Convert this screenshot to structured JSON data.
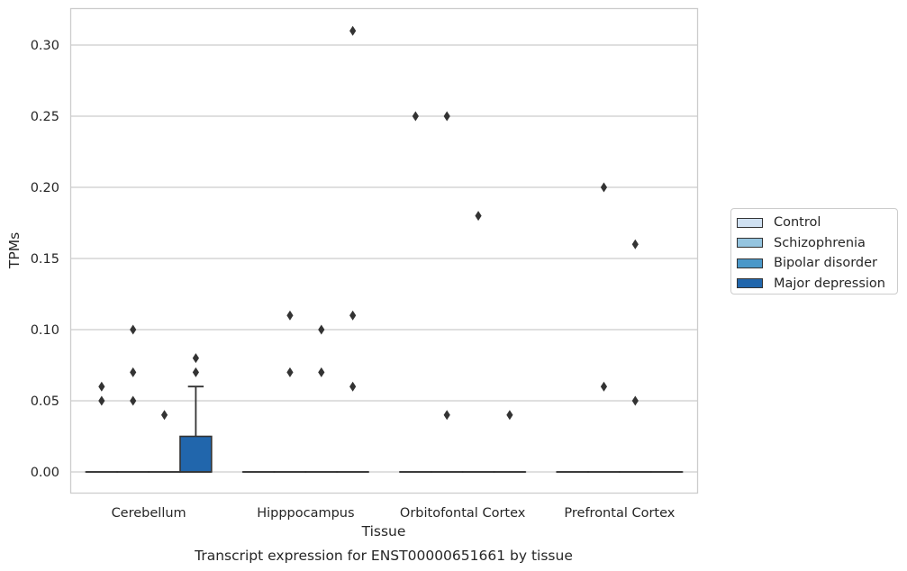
{
  "chart_data": {
    "type": "box",
    "title": "Transcript expression for ENST00000651661 by tissue",
    "xlabel": "Tissue",
    "ylabel": "TPMs",
    "categories": [
      "Cerebellum",
      "Hipppocampus",
      "Orbitofontal Cortex",
      "Prefrontal Cortex"
    ],
    "ylim": [
      -0.015,
      0.325
    ],
    "yticks": [
      "0.00",
      "0.05",
      "0.10",
      "0.15",
      "0.20",
      "0.25",
      "0.30"
    ],
    "grid": true,
    "legend_position": "right",
    "series": [
      {
        "name": "Control",
        "color": "#d0e1f2",
        "boxes": [
          {
            "q1": 0,
            "median": 0,
            "q3": 0,
            "whisker_low": 0,
            "whisker_high": 0,
            "outliers": [
              0.05,
              0.06
            ]
          },
          {
            "q1": 0,
            "median": 0,
            "q3": 0,
            "whisker_low": 0,
            "whisker_high": 0,
            "outliers": []
          },
          {
            "q1": 0,
            "median": 0,
            "q3": 0,
            "whisker_low": 0,
            "whisker_high": 0,
            "outliers": [
              0.25
            ]
          },
          {
            "q1": 0,
            "median": 0,
            "q3": 0,
            "whisker_low": 0,
            "whisker_high": 0,
            "outliers": []
          }
        ]
      },
      {
        "name": "Schizophrenia",
        "color": "#94c4df",
        "boxes": [
          {
            "q1": 0,
            "median": 0,
            "q3": 0,
            "whisker_low": 0,
            "whisker_high": 0,
            "outliers": [
              0.05,
              0.07,
              0.1
            ]
          },
          {
            "q1": 0,
            "median": 0,
            "q3": 0,
            "whisker_low": 0,
            "whisker_high": 0,
            "outliers": [
              0.07,
              0.11
            ]
          },
          {
            "q1": 0,
            "median": 0,
            "q3": 0,
            "whisker_low": 0,
            "whisker_high": 0,
            "outliers": [
              0.04,
              0.25
            ]
          },
          {
            "q1": 0,
            "median": 0,
            "q3": 0,
            "whisker_low": 0,
            "whisker_high": 0,
            "outliers": [
              0.06,
              0.2
            ]
          }
        ]
      },
      {
        "name": "Bipolar disorder",
        "color": "#4a98c9",
        "boxes": [
          {
            "q1": 0,
            "median": 0,
            "q3": 0,
            "whisker_low": 0,
            "whisker_high": 0,
            "outliers": [
              0.04
            ]
          },
          {
            "q1": 0,
            "median": 0,
            "q3": 0,
            "whisker_low": 0,
            "whisker_high": 0,
            "outliers": [
              0.07,
              0.1
            ]
          },
          {
            "q1": 0,
            "median": 0,
            "q3": 0,
            "whisker_low": 0,
            "whisker_high": 0,
            "outliers": [
              0.18
            ]
          },
          {
            "q1": 0,
            "median": 0,
            "q3": 0,
            "whisker_low": 0,
            "whisker_high": 0,
            "outliers": [
              0.05,
              0.16
            ]
          }
        ]
      },
      {
        "name": "Major depression",
        "color": "#2166ac",
        "boxes": [
          {
            "q1": 0,
            "median": 0,
            "q3": 0.025,
            "whisker_low": 0,
            "whisker_high": 0.06,
            "outliers": [
              0.07,
              0.08
            ]
          },
          {
            "q1": 0,
            "median": 0,
            "q3": 0,
            "whisker_low": 0,
            "whisker_high": 0,
            "outliers": [
              0.06,
              0.11,
              0.31
            ]
          },
          {
            "q1": 0,
            "median": 0,
            "q3": 0,
            "whisker_low": 0,
            "whisker_high": 0,
            "outliers": [
              0.04
            ]
          },
          {
            "q1": 0,
            "median": 0,
            "q3": 0,
            "whisker_low": 0,
            "whisker_high": 0,
            "outliers": []
          }
        ]
      }
    ]
  }
}
